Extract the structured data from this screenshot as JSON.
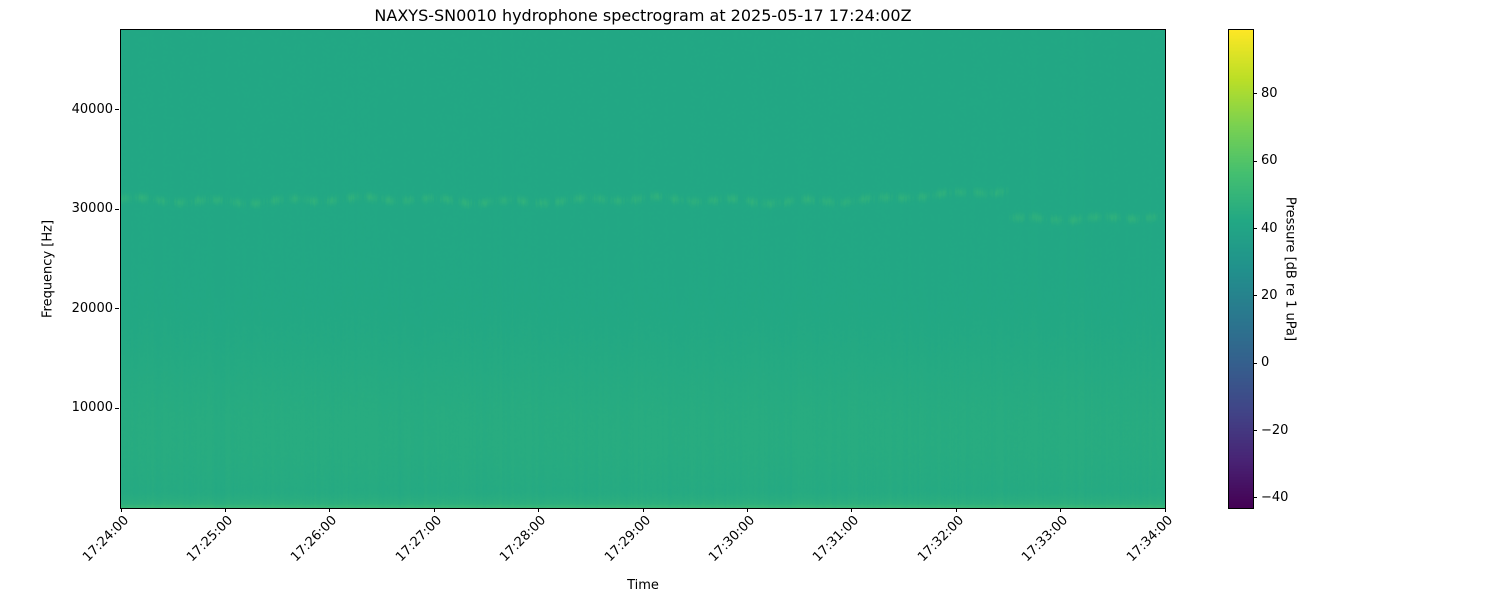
{
  "figure": {
    "background": "#ffffff",
    "colormap": "viridis"
  },
  "chart_data": {
    "type": "heatmap",
    "title": "NAXYS-SN0010 hydrophone spectrogram at 2025-05-17 17:24:00Z",
    "xlabel": "Time",
    "ylabel": "Frequency [Hz]",
    "x_ticklabels": [
      "17:24:00",
      "17:25:00",
      "17:26:00",
      "17:27:00",
      "17:28:00",
      "17:29:00",
      "17:30:00",
      "17:31:00",
      "17:32:00",
      "17:33:00",
      "17:34:00"
    ],
    "x_range_minutes": [
      0,
      10
    ],
    "y_ticks": [
      10000,
      20000,
      30000,
      40000
    ],
    "freq_range_hz": [
      0,
      48000
    ],
    "grid": false,
    "colorbar": {
      "label": "Pressure [dB re 1 uPa]",
      "ticks": [
        80,
        60,
        40,
        20,
        0,
        -20,
        -40
      ],
      "vmin": -43,
      "vmax": 99,
      "colormap": "viridis"
    },
    "field": {
      "background_db": 42.0,
      "broadband_low_freq": {
        "center_hz": 7500,
        "sigma_hz": 9000,
        "boost_db": 2.6
      },
      "surface_strip": {
        "below_hz": 2000,
        "boost_db": 5.5,
        "extra_bottom_hz": 350,
        "extra_bottom_db": 2.5
      },
      "tonal_band": {
        "level_db_peak": 5.0,
        "sigma_hz": 300,
        "segments": [
          {
            "t_min": 0.0,
            "t_max": 7.2,
            "freq_hz": 30900,
            "wobble_hz": 350
          },
          {
            "t_min": 7.2,
            "t_max": 8.5,
            "freq_start_hz": 30900,
            "freq_end_hz": 31900,
            "wobble_hz": 250
          },
          {
            "t_min": 8.5,
            "t_max": 10.0,
            "freq_hz": 29150,
            "wobble_hz": 250
          }
        ]
      },
      "column_noise_db": 1.3,
      "pixel_noise_db": 0.8
    }
  }
}
